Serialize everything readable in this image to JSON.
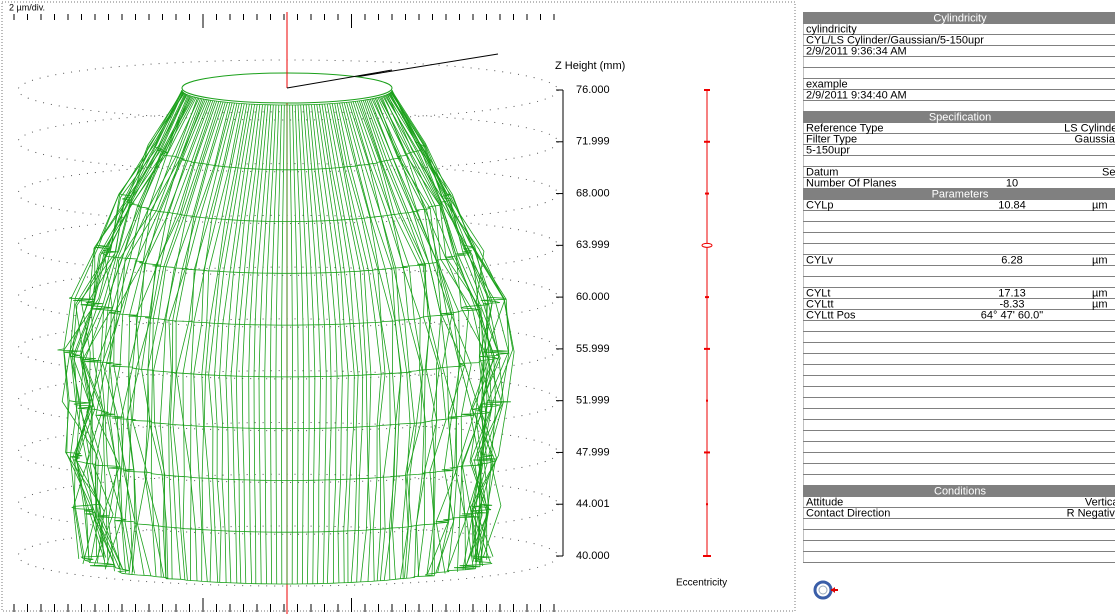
{
  "plot": {
    "scale_label": "2 µm/div.",
    "axis_title": "Z Height (mm)",
    "z_ticks": [
      "76.000",
      "71.999",
      "68.000",
      "63.999",
      "60.000",
      "55.999",
      "51.999",
      "47.999",
      "44.001",
      "40.000"
    ],
    "eccentricity_label": "Eccentricity"
  },
  "table": {
    "rows": [
      {
        "header": "Cylindricity"
      },
      {
        "label": "cylindricity"
      },
      {
        "label": "CYL/LS Cylinder/Gaussian/5-150upr"
      },
      {
        "label": "2/9/2011 9:36:34 AM"
      },
      {
        "label": "example"
      },
      {
        "label": "2/9/2011 9:34:40 AM"
      },
      {
        "header": "Specification"
      },
      {
        "label": "Reference Type",
        "right": "LS Cylinder"
      },
      {
        "label": "Filter Type",
        "right": "Gaussian"
      },
      {
        "label": "5-150upr"
      },
      {
        "label": "Datum",
        "right": "Self"
      },
      {
        "label": "Number Of Planes",
        "value": "10"
      },
      {
        "header": "Parameters"
      },
      {
        "label": "CYLp",
        "value": "10.84",
        "unit": "µm"
      },
      {
        "label": "CYLv",
        "value": "6.28",
        "unit": "µm"
      },
      {
        "label": "CYLt",
        "value": "17.13",
        "unit": "µm"
      },
      {
        "label": "CYLtt",
        "value": "-8.33",
        "unit": "µm"
      },
      {
        "label": "CYLtt Pos",
        "value": "64° 47' 60.0\""
      },
      {
        "header": "Conditions"
      },
      {
        "label": "Attitude",
        "right": "Vertical"
      },
      {
        "label": "Contact Direction",
        "right": "R Negative"
      }
    ]
  }
}
